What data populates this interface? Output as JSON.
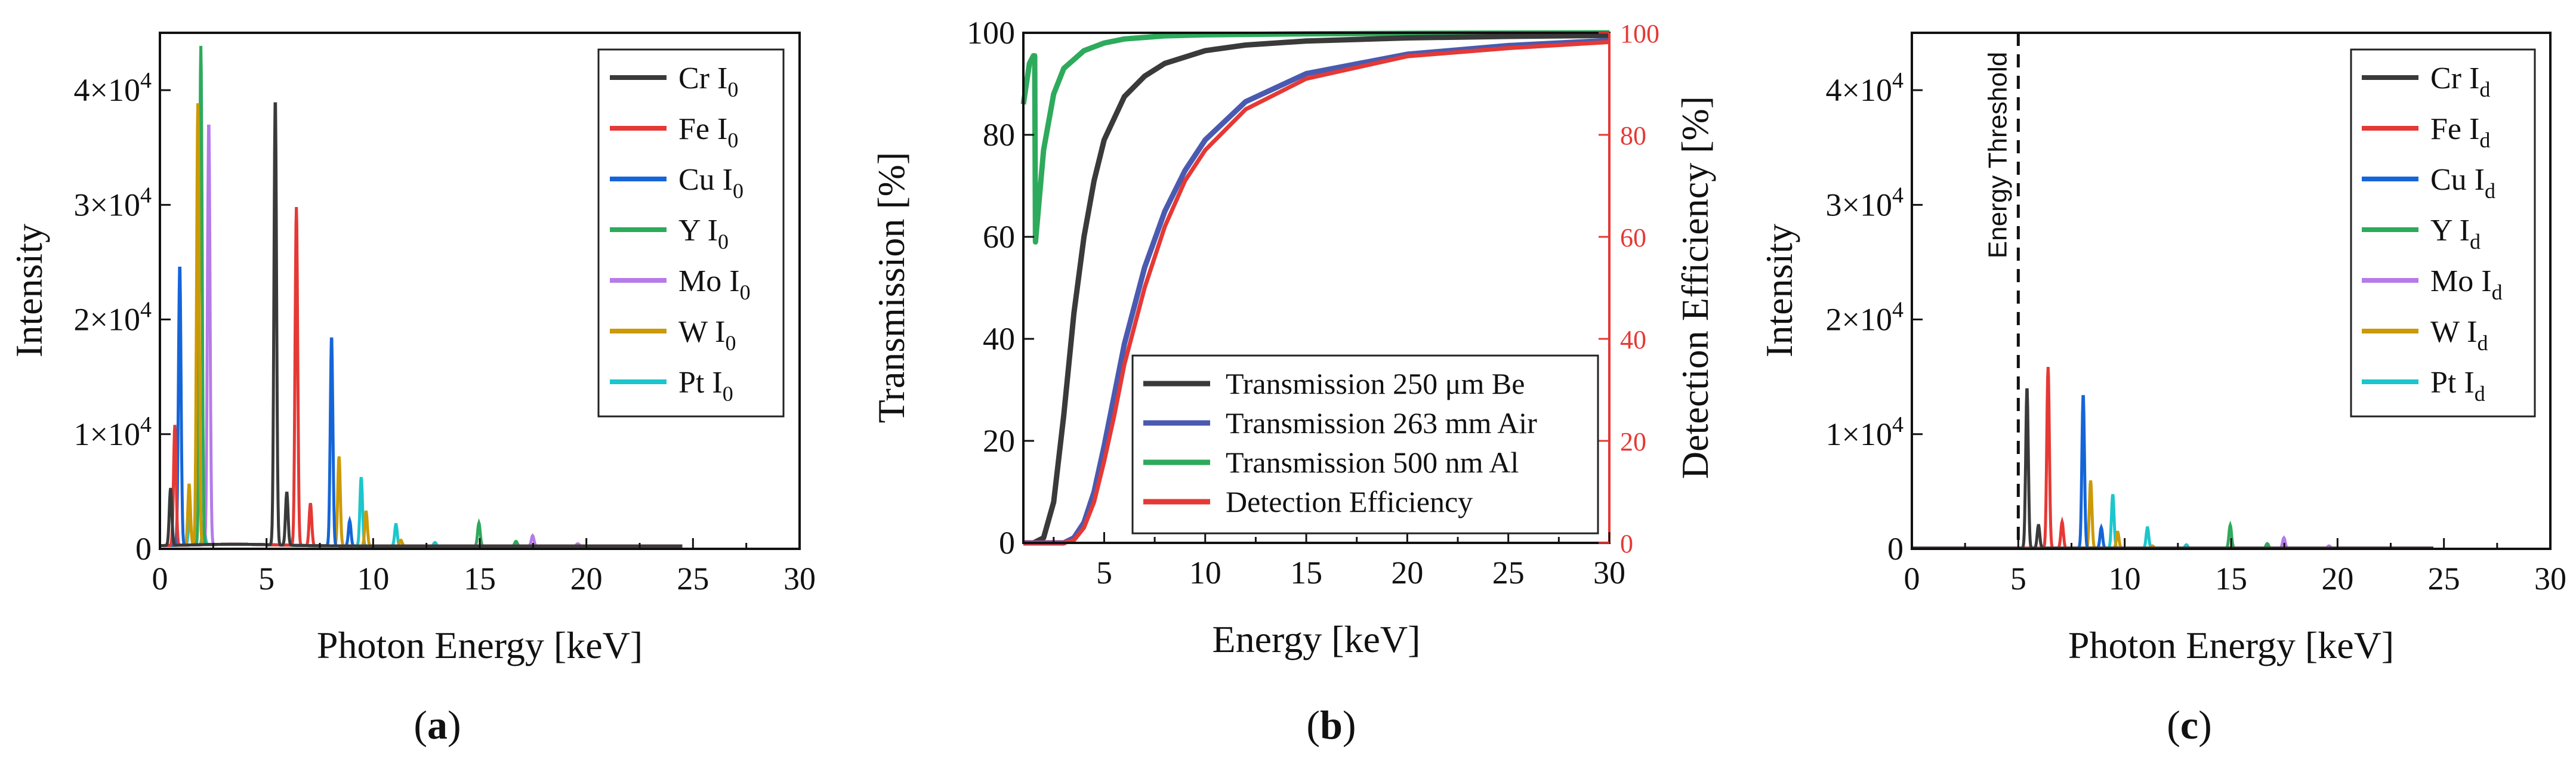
{
  "colors": {
    "Cr": "#3a3a3a",
    "Fe": "#e53935",
    "Cu": "#1565d8",
    "Y": "#2eaa5c",
    "Mo": "#b57be8",
    "W": "#cc9a06",
    "Pt": "#1cc6cc",
    "be": "#3a3a3a",
    "air": "#4a5ab0",
    "al": "#2eaa5c",
    "eff": "#e53935"
  },
  "chart_data": [
    {
      "type": "line",
      "panel": "(a)",
      "caption_parts": [
        "(",
        "a",
        ")"
      ],
      "xlabel": "Photon Energy [keV]",
      "ylabel": "Intensity",
      "xlim": [
        0,
        30
      ],
      "ylim": [
        0,
        45000
      ],
      "xticks": [
        "0",
        "5",
        "10",
        "15",
        "20",
        "25",
        "30"
      ],
      "xtick_values": [
        0,
        5,
        10,
        15,
        20,
        25,
        30
      ],
      "yticks": [
        {
          "value": 0,
          "mant": "0",
          "exp": ""
        },
        {
          "value": 10000,
          "mant": "1×10",
          "exp": "4"
        },
        {
          "value": 20000,
          "mant": "2×10",
          "exp": "4"
        },
        {
          "value": 30000,
          "mant": "3×10",
          "exp": "4"
        },
        {
          "value": 40000,
          "mant": "4×10",
          "exp": "4"
        }
      ],
      "legend": [
        {
          "el": "Cr",
          "label": "Cr I",
          "sub": "0"
        },
        {
          "el": "Fe",
          "label": "Fe I",
          "sub": "0"
        },
        {
          "el": "Cu",
          "label": "Cu I",
          "sub": "0"
        },
        {
          "el": "Y",
          "label": "Y I",
          "sub": "0"
        },
        {
          "el": "Mo",
          "label": "Mo I",
          "sub": "0"
        },
        {
          "el": "W",
          "label": "W I",
          "sub": "0"
        },
        {
          "el": "Pt",
          "label": "Pt I",
          "sub": "0"
        }
      ],
      "series": [
        {
          "el": "Cr",
          "peaks": [
            [
              0.5,
              5000
            ],
            [
              5.41,
              39000
            ],
            [
              5.95,
              4600
            ]
          ]
        },
        {
          "el": "Fe",
          "peaks": [
            [
              0.7,
              10500
            ],
            [
              6.4,
              29500
            ],
            [
              7.06,
              3700
            ]
          ]
        },
        {
          "el": "Cu",
          "peaks": [
            [
              0.93,
              24500
            ],
            [
              8.05,
              18300
            ],
            [
              8.9,
              2200
            ]
          ]
        },
        {
          "el": "Y",
          "peaks": [
            [
              1.92,
              43500
            ],
            [
              14.96,
              2000
            ],
            [
              16.7,
              400
            ]
          ]
        },
        {
          "el": "Mo",
          "peaks": [
            [
              2.29,
              37000
            ],
            [
              17.48,
              900
            ],
            [
              19.6,
              200
            ]
          ]
        },
        {
          "el": "W",
          "peaks": [
            [
              1.37,
              5300
            ],
            [
              1.78,
              38500
            ],
            [
              8.4,
              7800
            ],
            [
              9.67,
              3000
            ],
            [
              11.3,
              500
            ]
          ]
        },
        {
          "el": "Pt",
          "peaks": [
            [
              1.4,
              2500
            ],
            [
              2.05,
              2000
            ],
            [
              9.44,
              6000
            ],
            [
              11.07,
              1900
            ],
            [
              12.9,
              300
            ]
          ]
        }
      ]
    },
    {
      "type": "line",
      "panel": "(b)",
      "caption_parts": [
        "(",
        "b",
        ")"
      ],
      "xlabel": "Energy [keV]",
      "ylabel": "Transmission [%]",
      "ylabel_right": "Detection Efficiency [%]",
      "xlim": [
        1,
        30
      ],
      "ylim": [
        0,
        100
      ],
      "ylim_right": [
        0,
        100
      ],
      "xticks": [
        "5",
        "10",
        "15",
        "20",
        "25",
        "30"
      ],
      "xtick_values": [
        5,
        10,
        15,
        20,
        25,
        30
      ],
      "yticks": [
        "0",
        "20",
        "40",
        "60",
        "80",
        "100"
      ],
      "ytick_values": [
        0,
        20,
        40,
        60,
        80,
        100
      ],
      "yticks_right": [
        "0",
        "20",
        "40",
        "60",
        "80",
        "100"
      ],
      "legend": [
        {
          "key": "be",
          "label": "Transmission 250 μm Be"
        },
        {
          "key": "air",
          "label": "Transmission 263 mm Air"
        },
        {
          "key": "al",
          "label": "Transmission 500 nm Al"
        },
        {
          "key": "eff",
          "label": "Detection Efficiency"
        }
      ],
      "series": [
        {
          "key": "be",
          "x": [
            1.0,
            1.5,
            2.0,
            2.5,
            3.0,
            3.5,
            4.0,
            4.5,
            5.0,
            6.0,
            7.0,
            8.0,
            10.0,
            12.0,
            15.0,
            20.0,
            25.0,
            30.0
          ],
          "y": [
            0,
            0,
            1,
            8,
            25,
            45,
            60,
            71,
            79,
            87.5,
            91.5,
            94,
            96.5,
            97.6,
            98.4,
            99,
            99.3,
            99.5
          ]
        },
        {
          "key": "air",
          "x": [
            1.0,
            2.0,
            3.0,
            3.5,
            4.0,
            4.5,
            5.0,
            5.5,
            6.0,
            7.0,
            8.0,
            9.0,
            10.0,
            12.0,
            15.0,
            20.0,
            25.0,
            30.0
          ],
          "y": [
            0,
            0,
            0,
            1,
            4,
            10,
            19,
            29,
            39,
            54,
            65,
            73,
            79,
            86.5,
            92,
            95.8,
            97.5,
            98.5
          ]
        },
        {
          "key": "al",
          "x": [
            1.0,
            1.3,
            1.5,
            1.56,
            1.6,
            1.8,
            2.0,
            2.5,
            3.0,
            4.0,
            5.0,
            6.0,
            8.0,
            10.0,
            15.0,
            20.0,
            30.0
          ],
          "y": [
            86,
            94,
            95.5,
            95.5,
            59,
            68,
            77,
            88,
            93,
            96.5,
            98,
            98.8,
            99.4,
            99.6,
            99.8,
            99.9,
            100
          ]
        },
        {
          "key": "eff",
          "x": [
            1.0,
            2.0,
            3.0,
            3.5,
            4.0,
            4.5,
            5.0,
            5.5,
            6.0,
            7.0,
            8.0,
            9.0,
            10.0,
            12.0,
            15.0,
            20.0,
            25.0,
            30.0
          ],
          "y": [
            0,
            0,
            0,
            0.5,
            3,
            8,
            16,
            25,
            35,
            50,
            62,
            71,
            77,
            85,
            91,
            95.4,
            97,
            98.2
          ]
        }
      ]
    },
    {
      "type": "line",
      "panel": "(c)",
      "caption_parts": [
        "(",
        "c",
        ")"
      ],
      "xlabel": "Photon Energy [keV]",
      "ylabel": "Intensity",
      "xlim": [
        0,
        30
      ],
      "ylim": [
        0,
        45000
      ],
      "xticks": [
        "0",
        "5",
        "10",
        "15",
        "20",
        "25",
        "30"
      ],
      "xtick_values": [
        0,
        5,
        10,
        15,
        20,
        25,
        30
      ],
      "yticks": [
        {
          "value": 0,
          "mant": "0",
          "exp": ""
        },
        {
          "value": 10000,
          "mant": "1×10",
          "exp": "4"
        },
        {
          "value": 20000,
          "mant": "2×10",
          "exp": "4"
        },
        {
          "value": 30000,
          "mant": "3×10",
          "exp": "4"
        },
        {
          "value": 40000,
          "mant": "4×10",
          "exp": "4"
        }
      ],
      "threshold": {
        "x": 5,
        "label": "Energy Threshold"
      },
      "legend": [
        {
          "el": "Cr",
          "label": "Cr I",
          "sub": "d"
        },
        {
          "el": "Fe",
          "label": "Fe I",
          "sub": "d"
        },
        {
          "el": "Cu",
          "label": "Cu I",
          "sub": "d"
        },
        {
          "el": "Y",
          "label": "Y I",
          "sub": "d"
        },
        {
          "el": "Mo",
          "label": "Mo I",
          "sub": "d"
        },
        {
          "el": "W",
          "label": "W I",
          "sub": "d"
        },
        {
          "el": "Pt",
          "label": "Pt I",
          "sub": "d"
        }
      ],
      "series": [
        {
          "el": "Cr",
          "peaks": [
            [
              5.41,
              14000
            ],
            [
              5.95,
              2000
            ]
          ]
        },
        {
          "el": "Fe",
          "peaks": [
            [
              6.4,
              15800
            ],
            [
              7.06,
              2300
            ]
          ]
        },
        {
          "el": "Cu",
          "peaks": [
            [
              8.05,
              13400
            ],
            [
              8.9,
              1800
            ]
          ]
        },
        {
          "el": "Y",
          "peaks": [
            [
              14.96,
              2000
            ],
            [
              16.7,
              400
            ]
          ]
        },
        {
          "el": "Mo",
          "peaks": [
            [
              17.48,
              900
            ],
            [
              19.6,
              200
            ]
          ]
        },
        {
          "el": "W",
          "peaks": [
            [
              8.4,
              5900
            ],
            [
              9.67,
              1400
            ],
            [
              11.3,
              200
            ]
          ]
        },
        {
          "el": "Pt",
          "peaks": [
            [
              9.44,
              4700
            ],
            [
              11.07,
              1800
            ],
            [
              12.9,
              300
            ]
          ]
        }
      ]
    }
  ]
}
